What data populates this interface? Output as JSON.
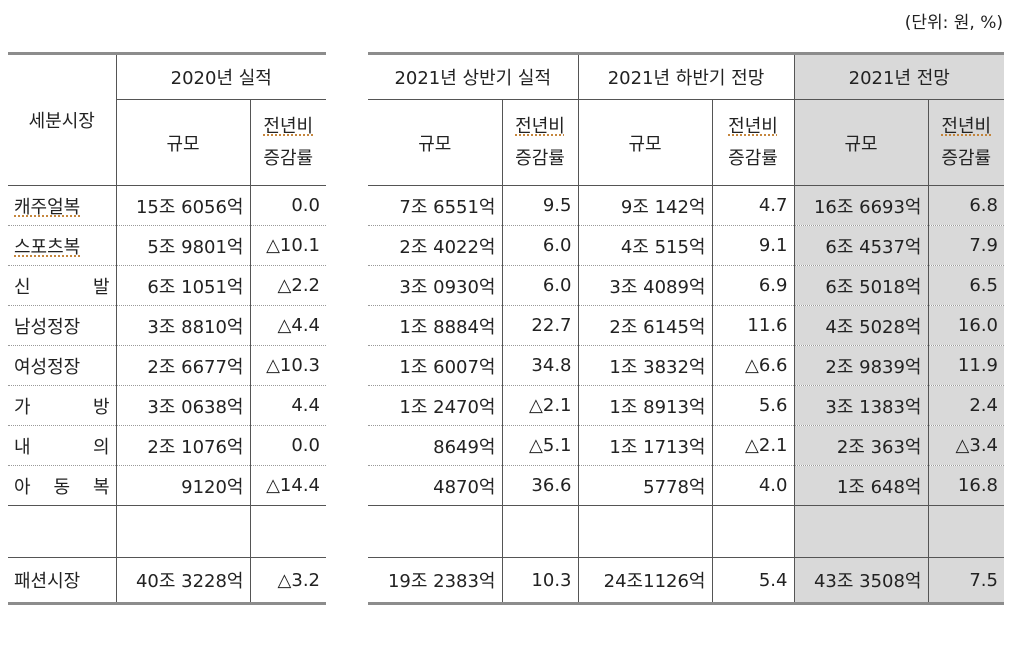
{
  "unit_note": "(단위: 원, %)",
  "header": {
    "segment": "세분시장",
    "y2020": "2020년 실적",
    "h1_2021": "2021년 상반기 실적",
    "h2_2021": "2021년 하반기 전망",
    "full_2021": "2021년 전망",
    "size": "규모",
    "yoy_line1": "전년비",
    "yoy_line2": "증감률"
  },
  "rows": [
    {
      "name": "캐주얼복",
      "a": "15조 6056억",
      "b": "0.0",
      "c": "7조 6551억",
      "d": "9.5",
      "e": "9조 142억",
      "f": "4.7",
      "g": "16조 6693억",
      "h": "6.8"
    },
    {
      "name": "스포츠복",
      "a": "5조 9801억",
      "b": "△10.1",
      "c": "2조 4022억",
      "d": "6.0",
      "e": "4조 515억",
      "f": "9.1",
      "g": "6조 4537억",
      "h": "7.9"
    },
    {
      "name": "신 발",
      "a": "6조 1051억",
      "b": "△2.2",
      "c": "3조 0930억",
      "d": "6.0",
      "e": "3조 4089억",
      "f": "6.9",
      "g": "6조 5018억",
      "h": "6.5"
    },
    {
      "name": "남성정장",
      "a": "3조 8810억",
      "b": "△4.4",
      "c": "1조 8884억",
      "d": "22.7",
      "e": "2조 6145억",
      "f": "11.6",
      "g": "4조 5028억",
      "h": "16.0"
    },
    {
      "name": "여성정장",
      "a": "2조 6677억",
      "b": "△10.3",
      "c": "1조 6007억",
      "d": "34.8",
      "e": "1조 3832억",
      "f": "△6.6",
      "g": "2조 9839억",
      "h": "11.9"
    },
    {
      "name": "가 방",
      "a": "3조 0638억",
      "b": "4.4",
      "c": "1조 2470억",
      "d": "△2.1",
      "e": "1조 8913억",
      "f": "5.6",
      "g": "3조 1383억",
      "h": "2.4"
    },
    {
      "name": "내 의",
      "a": "2조 1076억",
      "b": "0.0",
      "c": "8649억",
      "d": "△5.1",
      "e": "1조 1713억",
      "f": "△2.1",
      "g": "2조 363억",
      "h": "△3.4"
    },
    {
      "name": "아 동 복",
      "a": "9120억",
      "b": "△14.4",
      "c": "4870억",
      "d": "36.6",
      "e": "5778억",
      "f": "4.0",
      "g": "1조 648억",
      "h": "16.8"
    }
  ],
  "total": {
    "name": "패션시장",
    "a": "40조 3228억",
    "b": "△3.2",
    "c": "19조 2383억",
    "d": "10.3",
    "e": "24조1126억",
    "f": "5.4",
    "g": "43조 3508억",
    "h": "7.5"
  }
}
